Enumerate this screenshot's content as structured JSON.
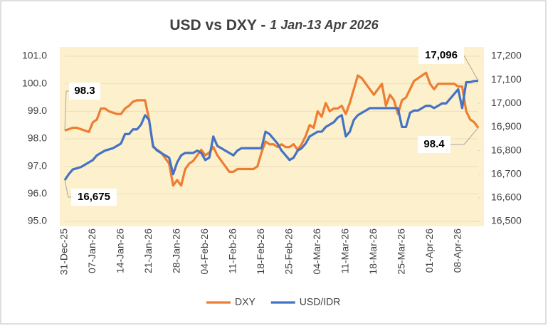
{
  "chart_data": {
    "type": "line",
    "title": "USD vs DXY -",
    "subtitle": "1 Jan-13 Apr 2026",
    "categories": [
      "31-Dec-25",
      null,
      null,
      null,
      null,
      null,
      null,
      "07-Jan-26",
      null,
      null,
      null,
      null,
      null,
      null,
      "14-Jan-26",
      null,
      null,
      null,
      null,
      null,
      null,
      "21-Jan-26",
      null,
      null,
      null,
      null,
      null,
      null,
      "28-Jan-26",
      null,
      null,
      null,
      null,
      null,
      null,
      "04-Feb-26",
      null,
      null,
      null,
      null,
      null,
      null,
      "11-Feb-26",
      null,
      null,
      null,
      null,
      null,
      null,
      "18-Feb-26",
      null,
      null,
      null,
      null,
      null,
      null,
      "25-Feb-26",
      null,
      null,
      null,
      null,
      null,
      null,
      "04-Mar-26",
      null,
      null,
      null,
      null,
      null,
      null,
      "11-Mar-26",
      null,
      null,
      null,
      null,
      null,
      null,
      "18-Mar-26",
      null,
      null,
      null,
      null,
      null,
      null,
      "25-Mar-26",
      null,
      null,
      null,
      null,
      null,
      null,
      "01-Apr-26",
      null,
      null,
      null,
      null,
      null,
      null,
      "08-Apr-26",
      null,
      null,
      null,
      null,
      null
    ],
    "series": [
      {
        "name": "DXY",
        "color": "#ed7d31",
        "values": [
          98.3,
          98.35,
          98.4,
          98.4,
          98.35,
          98.3,
          98.25,
          98.6,
          98.7,
          99.1,
          99.1,
          99.0,
          98.95,
          98.9,
          98.9,
          99.1,
          99.2,
          99.35,
          99.4,
          99.4,
          99.4,
          98.7,
          97.7,
          97.6,
          97.5,
          97.3,
          97.1,
          96.3,
          96.5,
          96.3,
          96.9,
          97.1,
          97.2,
          97.4,
          97.6,
          97.4,
          97.5,
          97.7,
          97.4,
          97.2,
          97.0,
          96.8,
          96.8,
          96.9,
          96.9,
          96.9,
          96.9,
          96.9,
          97.0,
          97.5,
          97.9,
          97.8,
          97.8,
          97.7,
          97.8,
          97.7,
          97.7,
          97.8,
          97.6,
          97.8,
          98.1,
          98.5,
          98.4,
          99.0,
          98.8,
          99.3,
          99.0,
          99.1,
          99.1,
          99.2,
          98.9,
          99.3,
          99.8,
          100.3,
          100.2,
          100.0,
          99.8,
          99.6,
          99.8,
          100.0,
          99.2,
          99.6,
          99.4,
          98.9,
          99.4,
          99.5,
          99.8,
          100.1,
          100.2,
          100.3,
          100.4,
          100.0,
          99.8,
          100.0,
          100.0,
          100.0,
          100.0,
          100.0,
          99.9,
          99.9,
          99.0,
          98.7,
          98.6,
          98.4
        ]
      },
      {
        "name": "USD/IDR",
        "color": "#4472c4",
        "axis": "y2",
        "values": [
          16675,
          16700,
          16720,
          16725,
          16730,
          16740,
          16750,
          16760,
          16780,
          16790,
          16800,
          16805,
          16810,
          16820,
          16830,
          16870,
          16870,
          16890,
          16890,
          16910,
          16950,
          16930,
          16820,
          16800,
          16790,
          16780,
          16770,
          16700,
          16750,
          16780,
          16790,
          16790,
          16790,
          16800,
          16790,
          16760,
          16770,
          16860,
          16820,
          16810,
          16800,
          16790,
          16780,
          16800,
          16810,
          16810,
          16810,
          16810,
          16810,
          16810,
          16880,
          16870,
          16850,
          16830,
          16800,
          16780,
          16760,
          16770,
          16800,
          16810,
          16830,
          16860,
          16870,
          16880,
          16880,
          16900,
          16910,
          16920,
          16940,
          16950,
          16860,
          16880,
          16930,
          16950,
          16960,
          16970,
          16980,
          16980,
          16980,
          16980,
          16980,
          16980,
          16980,
          16980,
          16900,
          16900,
          16960,
          16970,
          16970,
          16980,
          16990,
          16990,
          16980,
          16990,
          17000,
          17000,
          17020,
          17040,
          17060,
          16980,
          17090,
          17090,
          17095,
          17096
        ]
      }
    ],
    "ylim": [
      95,
      101
    ],
    "yticks": [
      {
        "value": 95,
        "label": "95.0"
      },
      {
        "value": 96,
        "label": "96.0"
      },
      {
        "value": 97,
        "label": "97.0"
      },
      {
        "value": 98,
        "label": "98.0"
      },
      {
        "value": 99,
        "label": "99.0"
      },
      {
        "value": 100,
        "label": "100.0"
      },
      {
        "value": 101,
        "label": "101.0"
      }
    ],
    "y2lim": [
      16500,
      17200
    ],
    "y2ticks": [
      {
        "value": 16500,
        "label": "16,500"
      },
      {
        "value": 16600,
        "label": "16,600"
      },
      {
        "value": 16700,
        "label": "16,700"
      },
      {
        "value": 16800,
        "label": "16,800"
      },
      {
        "value": 16900,
        "label": "16,900"
      },
      {
        "value": 17000,
        "label": "17,000"
      },
      {
        "value": 17100,
        "label": "17,100"
      },
      {
        "value": 17200,
        "label": "17,200"
      }
    ],
    "annotations": [
      "98.3",
      "16,675",
      "17,096",
      "98.4"
    ],
    "grid": true,
    "legend": "bottom"
  }
}
